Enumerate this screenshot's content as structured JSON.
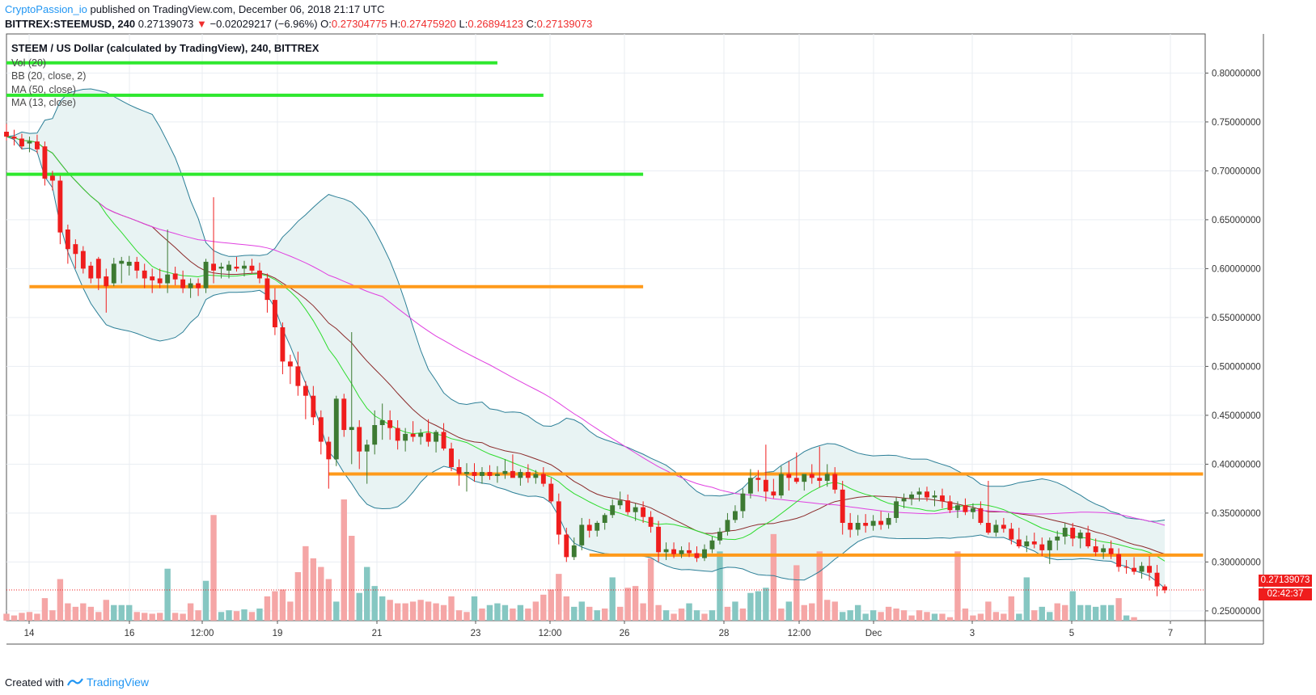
{
  "header": {
    "author": "CryptoPassion_io",
    "published_text": " published on TradingView.com, December 06, 2018 21:17 UTC",
    "symbol": "BITTREX:STEEMUSD, 240",
    "last": "0.27139073",
    "change": "−0.02029217 (−6.96%)",
    "o_label": "O:",
    "o": "0.27304775",
    "h_label": "H:",
    "h": "0.27475920",
    "l_label": "L:",
    "l": "0.26894123",
    "c_label": "C:",
    "c": "0.27139073"
  },
  "legend": {
    "title": "STEEM / US Dollar (calculated by TradingView), 240, BITTREX",
    "items": [
      "Vol (20)",
      "BB (20, close, 2)",
      "MA (50, close)",
      "MA (13, close)"
    ]
  },
  "price_labels": {
    "last": "0.27139073",
    "countdown": "02:42:37"
  },
  "footer": {
    "created_with": "Created with",
    "brand": "TradingView"
  },
  "colors": {
    "up": "#3d7a32",
    "down": "#ef1d1d",
    "vol_up": "#86c7c2",
    "vol_down": "#f5a6a6",
    "bb": "#2c7f97",
    "bb_fill": "#e8f3f3",
    "ma50": "#e040e0",
    "ma13": "#2ddc2d",
    "ma20": "#8b2a2a",
    "green_line": "#2ee82e",
    "orange_line": "#ff9a1a",
    "grid": "#e9edf2",
    "axis_text": "#333333"
  },
  "chart_data": {
    "type": "candlestick",
    "y_axis_ticks": [
      "0.80000000",
      "0.75000000",
      "0.70000000",
      "0.65000000",
      "0.60000000",
      "0.55000000",
      "0.50000000",
      "0.45000000",
      "0.40000000",
      "0.35000000",
      "0.30000000",
      "0.25000000"
    ],
    "x_axis_ticks": [
      "14",
      "16",
      "12:00",
      "19",
      "21",
      "23",
      "12:00",
      "26",
      "28",
      "12:00",
      "Dec",
      "3",
      "5",
      "7"
    ],
    "ylim": [
      0.24,
      0.84
    ],
    "horizontal_lines": [
      {
        "color": "green",
        "y": 0.8105,
        "from": 0,
        "to": 64
      },
      {
        "color": "green",
        "y": 0.7773,
        "from": 0,
        "to": 70
      },
      {
        "color": "green",
        "y": 0.6965,
        "from": 0,
        "to": 83
      },
      {
        "color": "orange",
        "y": 0.5815,
        "from": 3,
        "to": 83
      },
      {
        "color": "orange",
        "y": 0.39,
        "from": 42,
        "to": 156
      },
      {
        "color": "orange",
        "y": 0.307,
        "from": 76,
        "to": 156
      }
    ],
    "candles": [
      [
        0.74,
        0.748,
        0.731,
        0.735
      ],
      [
        0.735,
        0.742,
        0.726,
        0.733
      ],
      [
        0.733,
        0.738,
        0.722,
        0.725
      ],
      [
        0.728,
        0.735,
        0.719,
        0.73
      ],
      [
        0.73,
        0.737,
        0.718,
        0.722
      ],
      [
        0.725,
        0.73,
        0.685,
        0.692
      ],
      [
        0.695,
        0.7,
        0.68,
        0.69
      ],
      [
        0.69,
        0.695,
        0.625,
        0.637
      ],
      [
        0.64,
        0.645,
        0.605,
        0.62
      ],
      [
        0.625,
        0.63,
        0.6,
        0.615
      ],
      [
        0.618,
        0.623,
        0.595,
        0.6
      ],
      [
        0.603,
        0.607,
        0.585,
        0.59
      ],
      [
        0.61,
        0.612,
        0.578,
        0.59
      ],
      [
        0.592,
        0.6,
        0.555,
        0.582
      ],
      [
        0.585,
        0.611,
        0.582,
        0.605
      ],
      [
        0.605,
        0.612,
        0.585,
        0.608
      ],
      [
        0.603,
        0.613,
        0.593,
        0.607
      ],
      [
        0.607,
        0.612,
        0.59,
        0.598
      ],
      [
        0.598,
        0.605,
        0.58,
        0.59
      ],
      [
        0.592,
        0.6,
        0.575,
        0.588
      ],
      [
        0.59,
        0.6,
        0.58,
        0.585
      ],
      [
        0.585,
        0.64,
        0.575,
        0.594
      ],
      [
        0.595,
        0.602,
        0.583,
        0.589
      ],
      [
        0.589,
        0.598,
        0.575,
        0.58
      ],
      [
        0.58,
        0.59,
        0.57,
        0.585
      ],
      [
        0.585,
        0.59,
        0.572,
        0.58
      ],
      [
        0.58,
        0.61,
        0.575,
        0.607
      ],
      [
        0.605,
        0.673,
        0.585,
        0.598
      ],
      [
        0.6,
        0.606,
        0.59,
        0.602
      ],
      [
        0.598,
        0.608,
        0.59,
        0.604
      ],
      [
        0.602,
        0.612,
        0.597,
        0.6
      ],
      [
        0.6,
        0.608,
        0.592,
        0.603
      ],
      [
        0.603,
        0.61,
        0.595,
        0.598
      ],
      [
        0.598,
        0.606,
        0.585,
        0.59
      ],
      [
        0.59,
        0.595,
        0.555,
        0.568
      ],
      [
        0.568,
        0.58,
        0.532,
        0.54
      ],
      [
        0.54,
        0.545,
        0.492,
        0.505
      ],
      [
        0.505,
        0.512,
        0.482,
        0.5
      ],
      [
        0.5,
        0.515,
        0.47,
        0.48
      ],
      [
        0.48,
        0.485,
        0.446,
        0.47
      ],
      [
        0.47,
        0.48,
        0.44,
        0.448
      ],
      [
        0.448,
        0.455,
        0.41,
        0.423
      ],
      [
        0.423,
        0.428,
        0.375,
        0.405
      ],
      [
        0.405,
        0.47,
        0.398,
        0.467
      ],
      [
        0.467,
        0.472,
        0.428,
        0.435
      ],
      [
        0.435,
        0.535,
        0.4,
        0.438
      ],
      [
        0.438,
        0.445,
        0.395,
        0.413
      ],
      [
        0.413,
        0.425,
        0.38,
        0.42
      ],
      [
        0.42,
        0.455,
        0.41,
        0.44
      ],
      [
        0.44,
        0.462,
        0.425,
        0.445
      ],
      [
        0.445,
        0.455,
        0.425,
        0.437
      ],
      [
        0.437,
        0.445,
        0.415,
        0.424
      ],
      [
        0.424,
        0.437,
        0.413,
        0.431
      ],
      [
        0.431,
        0.444,
        0.423,
        0.428
      ],
      [
        0.428,
        0.436,
        0.42,
        0.432
      ],
      [
        0.432,
        0.446,
        0.418,
        0.423
      ],
      [
        0.423,
        0.435,
        0.412,
        0.433
      ],
      [
        0.433,
        0.442,
        0.414,
        0.416
      ],
      [
        0.416,
        0.422,
        0.393,
        0.397
      ],
      [
        0.397,
        0.405,
        0.378,
        0.39
      ],
      [
        0.39,
        0.401,
        0.372,
        0.392
      ],
      [
        0.392,
        0.401,
        0.382,
        0.388
      ],
      [
        0.388,
        0.397,
        0.38,
        0.392
      ],
      [
        0.392,
        0.399,
        0.384,
        0.388
      ],
      [
        0.388,
        0.398,
        0.381,
        0.39
      ],
      [
        0.39,
        0.405,
        0.385,
        0.393
      ],
      [
        0.393,
        0.41,
        0.388,
        0.386
      ],
      [
        0.386,
        0.395,
        0.378,
        0.392
      ],
      [
        0.392,
        0.4,
        0.381,
        0.386
      ],
      [
        0.386,
        0.394,
        0.38,
        0.39
      ],
      [
        0.39,
        0.397,
        0.377,
        0.38
      ],
      [
        0.38,
        0.386,
        0.36,
        0.362
      ],
      [
        0.362,
        0.37,
        0.318,
        0.328
      ],
      [
        0.328,
        0.335,
        0.3,
        0.305
      ],
      [
        0.305,
        0.325,
        0.302,
        0.317
      ],
      [
        0.317,
        0.345,
        0.312,
        0.338
      ],
      [
        0.338,
        0.344,
        0.325,
        0.332
      ],
      [
        0.332,
        0.342,
        0.326,
        0.34
      ],
      [
        0.34,
        0.35,
        0.333,
        0.348
      ],
      [
        0.348,
        0.364,
        0.345,
        0.358
      ],
      [
        0.358,
        0.372,
        0.354,
        0.363
      ],
      [
        0.363,
        0.369,
        0.348,
        0.351
      ],
      [
        0.351,
        0.36,
        0.342,
        0.356
      ],
      [
        0.356,
        0.362,
        0.34,
        0.346
      ],
      [
        0.346,
        0.352,
        0.33,
        0.336
      ],
      [
        0.336,
        0.342,
        0.3,
        0.31
      ],
      [
        0.31,
        0.32,
        0.302,
        0.313
      ],
      [
        0.313,
        0.32,
        0.304,
        0.308
      ],
      [
        0.308,
        0.316,
        0.304,
        0.312
      ],
      [
        0.312,
        0.32,
        0.305,
        0.309
      ],
      [
        0.309,
        0.316,
        0.3,
        0.304
      ],
      [
        0.304,
        0.318,
        0.301,
        0.313
      ],
      [
        0.313,
        0.326,
        0.309,
        0.322
      ],
      [
        0.322,
        0.335,
        0.318,
        0.331
      ],
      [
        0.331,
        0.35,
        0.327,
        0.343
      ],
      [
        0.343,
        0.358,
        0.34,
        0.352
      ],
      [
        0.352,
        0.375,
        0.345,
        0.37
      ],
      [
        0.37,
        0.395,
        0.365,
        0.386
      ],
      [
        0.386,
        0.394,
        0.372,
        0.384
      ],
      [
        0.384,
        0.42,
        0.362,
        0.372
      ],
      [
        0.372,
        0.385,
        0.365,
        0.368
      ],
      [
        0.368,
        0.398,
        0.365,
        0.39
      ],
      [
        0.39,
        0.403,
        0.373,
        0.386
      ],
      [
        0.386,
        0.412,
        0.38,
        0.382
      ],
      [
        0.382,
        0.39,
        0.373,
        0.39
      ],
      [
        0.39,
        0.4,
        0.38,
        0.386
      ],
      [
        0.386,
        0.418,
        0.376,
        0.383
      ],
      [
        0.383,
        0.4,
        0.377,
        0.39
      ],
      [
        0.39,
        0.397,
        0.37,
        0.374
      ],
      [
        0.374,
        0.383,
        0.328,
        0.34
      ],
      [
        0.34,
        0.35,
        0.325,
        0.333
      ],
      [
        0.333,
        0.348,
        0.327,
        0.34
      ],
      [
        0.34,
        0.349,
        0.33,
        0.337
      ],
      [
        0.337,
        0.348,
        0.332,
        0.342
      ],
      [
        0.342,
        0.352,
        0.333,
        0.338
      ],
      [
        0.338,
        0.35,
        0.334,
        0.345
      ],
      [
        0.345,
        0.366,
        0.34,
        0.362
      ],
      [
        0.362,
        0.37,
        0.355,
        0.365
      ],
      [
        0.365,
        0.372,
        0.358,
        0.369
      ],
      [
        0.369,
        0.376,
        0.362,
        0.372
      ],
      [
        0.372,
        0.377,
        0.362,
        0.366
      ],
      [
        0.366,
        0.373,
        0.357,
        0.368
      ],
      [
        0.368,
        0.375,
        0.355,
        0.362
      ],
      [
        0.362,
        0.368,
        0.35,
        0.353
      ],
      [
        0.353,
        0.362,
        0.345,
        0.358
      ],
      [
        0.358,
        0.365,
        0.348,
        0.351
      ],
      [
        0.351,
        0.36,
        0.344,
        0.355
      ],
      [
        0.355,
        0.362,
        0.338,
        0.34
      ],
      [
        0.34,
        0.383,
        0.328,
        0.33
      ],
      [
        0.33,
        0.343,
        0.326,
        0.338
      ],
      [
        0.338,
        0.345,
        0.33,
        0.334
      ],
      [
        0.334,
        0.34,
        0.318,
        0.323
      ],
      [
        0.323,
        0.335,
        0.314,
        0.316
      ],
      [
        0.316,
        0.327,
        0.31,
        0.321
      ],
      [
        0.321,
        0.33,
        0.314,
        0.318
      ],
      [
        0.318,
        0.325,
        0.306,
        0.312
      ],
      [
        0.312,
        0.325,
        0.298,
        0.322
      ],
      [
        0.322,
        0.332,
        0.312,
        0.326
      ],
      [
        0.326,
        0.34,
        0.318,
        0.335
      ],
      [
        0.335,
        0.34,
        0.316,
        0.324
      ],
      [
        0.324,
        0.333,
        0.314,
        0.33
      ],
      [
        0.33,
        0.337,
        0.314,
        0.316
      ],
      [
        0.316,
        0.324,
        0.306,
        0.31
      ],
      [
        0.31,
        0.318,
        0.303,
        0.314
      ],
      [
        0.314,
        0.322,
        0.303,
        0.308
      ],
      [
        0.308,
        0.314,
        0.29,
        0.295
      ],
      [
        0.295,
        0.302,
        0.288,
        0.294
      ],
      [
        0.294,
        0.305,
        0.287,
        0.29
      ],
      [
        0.29,
        0.3,
        0.283,
        0.296
      ],
      [
        0.296,
        0.306,
        0.281,
        0.289
      ],
      [
        0.289,
        0.297,
        0.265,
        0.275
      ],
      [
        0.275,
        0.277,
        0.268,
        0.271
      ]
    ],
    "volumes": [
      [
        8,
        0
      ],
      [
        6,
        0
      ],
      [
        9,
        0
      ],
      [
        10,
        0
      ],
      [
        8,
        0
      ],
      [
        26,
        0
      ],
      [
        12,
        0
      ],
      [
        48,
        0
      ],
      [
        20,
        0
      ],
      [
        16,
        0
      ],
      [
        20,
        0
      ],
      [
        16,
        0
      ],
      [
        10,
        0
      ],
      [
        24,
        0
      ],
      [
        18,
        1
      ],
      [
        18,
        1
      ],
      [
        18,
        1
      ],
      [
        10,
        0
      ],
      [
        9,
        0
      ],
      [
        8,
        0
      ],
      [
        9,
        0
      ],
      [
        60,
        1
      ],
      [
        9,
        0
      ],
      [
        8,
        0
      ],
      [
        20,
        0
      ],
      [
        12,
        0
      ],
      [
        46,
        1
      ],
      [
        122,
        0
      ],
      [
        10,
        1
      ],
      [
        12,
        1
      ],
      [
        11,
        0
      ],
      [
        13,
        1
      ],
      [
        10,
        0
      ],
      [
        14,
        1
      ],
      [
        28,
        0
      ],
      [
        34,
        0
      ],
      [
        36,
        0
      ],
      [
        22,
        0
      ],
      [
        56,
        0
      ],
      [
        86,
        0
      ],
      [
        72,
        0
      ],
      [
        62,
        0
      ],
      [
        48,
        0
      ],
      [
        22,
        1
      ],
      [
        140,
        0
      ],
      [
        98,
        0
      ],
      [
        32,
        1
      ],
      [
        62,
        1
      ],
      [
        40,
        1
      ],
      [
        28,
        1
      ],
      [
        24,
        0
      ],
      [
        20,
        0
      ],
      [
        20,
        0
      ],
      [
        22,
        0
      ],
      [
        24,
        0
      ],
      [
        22,
        0
      ],
      [
        20,
        0
      ],
      [
        18,
        0
      ],
      [
        28,
        0
      ],
      [
        12,
        0
      ],
      [
        10,
        0
      ],
      [
        28,
        1
      ],
      [
        14,
        0
      ],
      [
        18,
        1
      ],
      [
        20,
        1
      ],
      [
        18,
        1
      ],
      [
        14,
        0
      ],
      [
        18,
        1
      ],
      [
        14,
        0
      ],
      [
        22,
        0
      ],
      [
        30,
        0
      ],
      [
        36,
        0
      ],
      [
        54,
        0
      ],
      [
        28,
        0
      ],
      [
        16,
        1
      ],
      [
        22,
        1
      ],
      [
        16,
        0
      ],
      [
        12,
        1
      ],
      [
        14,
        0
      ],
      [
        50,
        1
      ],
      [
        16,
        0
      ],
      [
        38,
        0
      ],
      [
        40,
        0
      ],
      [
        20,
        0
      ],
      [
        72,
        0
      ],
      [
        18,
        0
      ],
      [
        12,
        1
      ],
      [
        8,
        0
      ],
      [
        14,
        0
      ],
      [
        20,
        1
      ],
      [
        12,
        1
      ],
      [
        8,
        0
      ],
      [
        12,
        1
      ],
      [
        80,
        1
      ],
      [
        16,
        0
      ],
      [
        22,
        1
      ],
      [
        14,
        0
      ],
      [
        32,
        1
      ],
      [
        34,
        1
      ],
      [
        38,
        1
      ],
      [
        100,
        0
      ],
      [
        14,
        0
      ],
      [
        22,
        1
      ],
      [
        64,
        0
      ],
      [
        18,
        0
      ],
      [
        20,
        0
      ],
      [
        80,
        0
      ],
      [
        24,
        0
      ],
      [
        22,
        0
      ],
      [
        10,
        1
      ],
      [
        12,
        1
      ],
      [
        18,
        1
      ],
      [
        8,
        1
      ],
      [
        12,
        1
      ],
      [
        10,
        0
      ],
      [
        16,
        0
      ],
      [
        14,
        0
      ],
      [
        12,
        0
      ],
      [
        6,
        0
      ],
      [
        12,
        0
      ],
      [
        10,
        0
      ],
      [
        8,
        1
      ],
      [
        8,
        0
      ],
      [
        4,
        0
      ],
      [
        80,
        0
      ],
      [
        14,
        0
      ],
      [
        6,
        0
      ],
      [
        8,
        0
      ],
      [
        22,
        0
      ],
      [
        10,
        0
      ],
      [
        8,
        0
      ],
      [
        28,
        0
      ],
      [
        8,
        1
      ],
      [
        50,
        1
      ],
      [
        12,
        0
      ],
      [
        16,
        1
      ],
      [
        10,
        1
      ],
      [
        20,
        0
      ],
      [
        18,
        0
      ],
      [
        34,
        1
      ],
      [
        18,
        1
      ],
      [
        18,
        1
      ],
      [
        16,
        1
      ],
      [
        18,
        1
      ],
      [
        18,
        1
      ],
      [
        26,
        0
      ],
      [
        6,
        1
      ],
      [
        4,
        0
      ]
    ]
  }
}
